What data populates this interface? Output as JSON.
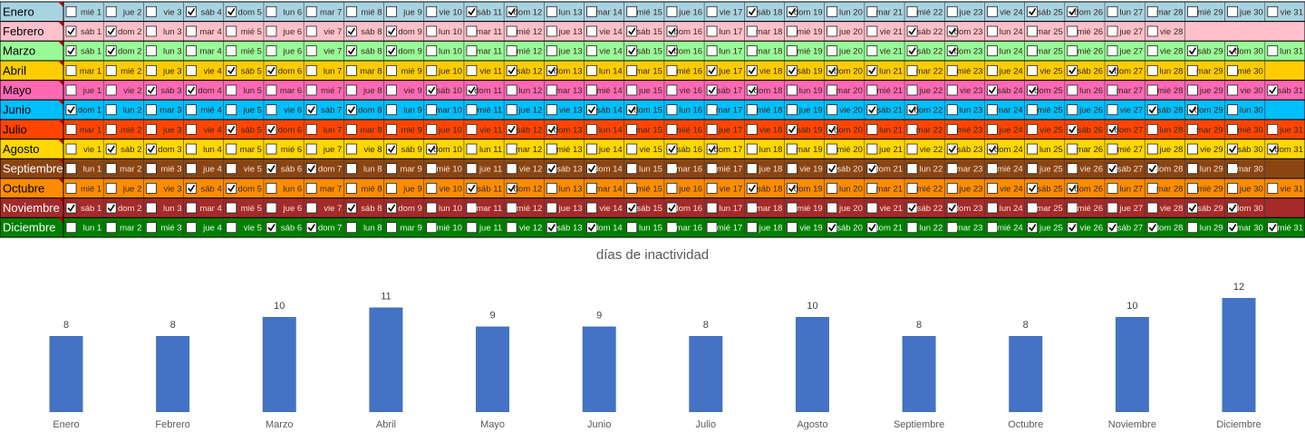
{
  "calendar": {
    "months": [
      {
        "name": "Enero",
        "color": "#a8d4e2",
        "text_color": "#000000",
        "day_text_color": "#3a2a20",
        "days": [
          "mié 1",
          "jue 2",
          "vie 3",
          "sáb 4",
          "dom 5",
          "lun 6",
          "mar 7",
          "mié 8",
          "jue 9",
          "vie 10",
          "sáb 11",
          "dom 12",
          "lun 13",
          "mar 14",
          "mié 15",
          "jue 16",
          "vie 17",
          "sáb 18",
          "dom 19",
          "lun 20",
          "mar 21",
          "mié 22",
          "jue 23",
          "vie 24",
          "sáb 25",
          "dom 26",
          "lun 27",
          "mar 28",
          "mié 29",
          "jue 30",
          "vie 31"
        ],
        "checked": [
          false,
          false,
          false,
          true,
          true,
          false,
          false,
          false,
          false,
          false,
          true,
          true,
          false,
          false,
          false,
          false,
          false,
          true,
          true,
          false,
          false,
          false,
          false,
          false,
          true,
          true,
          false,
          false,
          false,
          false,
          false
        ]
      },
      {
        "name": "Febrero",
        "color": "#ffc0cb",
        "text_color": "#000000",
        "day_text_color": "#3a2a20",
        "days": [
          "sáb 1",
          "dom 2",
          "lun 3",
          "mar 4",
          "mié 5",
          "jue 6",
          "vie 7",
          "sáb 8",
          "dom 9",
          "lun 10",
          "mar 11",
          "mié 12",
          "jue 13",
          "vie 14",
          "sáb 15",
          "dom 16",
          "lun 17",
          "mar 18",
          "mié 19",
          "jue 20",
          "vie 21",
          "sáb 22",
          "dom 23",
          "lun 24",
          "mar 25",
          "mié 26",
          "jue 27",
          "vie 28"
        ],
        "checked": [
          true,
          true,
          false,
          false,
          false,
          false,
          false,
          true,
          true,
          false,
          false,
          false,
          false,
          false,
          true,
          true,
          false,
          false,
          false,
          false,
          false,
          true,
          true,
          false,
          false,
          false,
          false,
          false
        ]
      },
      {
        "name": "Marzo",
        "color": "#98fb98",
        "text_color": "#000000",
        "day_text_color": "#3a2a20",
        "days": [
          "sáb 1",
          "dom 2",
          "lun 3",
          "mar 4",
          "mié 5",
          "jue 6",
          "vie 7",
          "sáb 8",
          "dom 9",
          "lun 10",
          "mar 11",
          "mié 12",
          "jue 13",
          "vie 14",
          "sáb 15",
          "dom 16",
          "lun 17",
          "mar 18",
          "mié 19",
          "jue 20",
          "vie 21",
          "sáb 22",
          "dom 23",
          "lun 24",
          "mar 25",
          "mié 26",
          "jue 27",
          "vie 28",
          "sáb 29",
          "dom 30",
          "lun 31"
        ],
        "checked": [
          true,
          true,
          false,
          false,
          false,
          false,
          false,
          true,
          true,
          false,
          false,
          false,
          false,
          false,
          true,
          true,
          false,
          false,
          false,
          false,
          false,
          true,
          true,
          false,
          false,
          false,
          false,
          false,
          true,
          true,
          false
        ]
      },
      {
        "name": "Abril",
        "color": "#ffcc00",
        "text_color": "#000000",
        "day_text_color": "#3a2a20",
        "days": [
          "mar 1",
          "mié 2",
          "jue 3",
          "vie 4",
          "sáb 5",
          "dom 6",
          "lun 7",
          "mar 8",
          "mié 9",
          "jue 10",
          "vie 11",
          "sáb 12",
          "dom 13",
          "lun 14",
          "mar 15",
          "mié 16",
          "jue 17",
          "vie 18",
          "sáb 19",
          "dom 20",
          "lun 21",
          "mar 22",
          "mié 23",
          "jue 24",
          "vie 25",
          "sáb 26",
          "dom 27",
          "lun 28",
          "mar 29",
          "mié 30"
        ],
        "checked": [
          false,
          false,
          false,
          false,
          true,
          true,
          false,
          false,
          false,
          false,
          false,
          true,
          true,
          false,
          false,
          false,
          true,
          true,
          true,
          true,
          true,
          false,
          false,
          false,
          false,
          true,
          true,
          false,
          false,
          false
        ]
      },
      {
        "name": "Mayo",
        "color": "#ff69b4",
        "text_color": "#000000",
        "day_text_color": "#3a2a20",
        "days": [
          "jue 1",
          "vie 2",
          "sáb 3",
          "dom 4",
          "lun 5",
          "mar 6",
          "mié 7",
          "jue 8",
          "vie 9",
          "sáb 10",
          "dom 11",
          "lun 12",
          "mar 13",
          "mié 14",
          "jue 15",
          "vie 16",
          "sáb 17",
          "dom 18",
          "lun 19",
          "mar 20",
          "mié 21",
          "jue 22",
          "vie 23",
          "sáb 24",
          "dom 25",
          "lun 26",
          "mar 27",
          "mié 28",
          "jue 29",
          "vie 30",
          "sáb 31"
        ],
        "checked": [
          false,
          false,
          true,
          true,
          false,
          false,
          false,
          false,
          false,
          true,
          true,
          false,
          false,
          false,
          false,
          false,
          true,
          true,
          false,
          false,
          false,
          false,
          false,
          true,
          true,
          false,
          false,
          false,
          false,
          false,
          true
        ]
      },
      {
        "name": "Junio",
        "color": "#00bfff",
        "text_color": "#000000",
        "day_text_color": "#3a2a20",
        "days": [
          "dom 1",
          "lun 2",
          "mar 3",
          "mié 4",
          "jue 5",
          "vie 6",
          "sáb 7",
          "dom 8",
          "lun 9",
          "mar 10",
          "mié 11",
          "jue 12",
          "vie 13",
          "sáb 14",
          "dom 15",
          "lun 16",
          "mar 17",
          "mié 18",
          "jue 19",
          "vie 20",
          "sáb 21",
          "dom 22",
          "lun 23",
          "mar 24",
          "mié 25",
          "jue 26",
          "vie 27",
          "sáb 28",
          "dom 29",
          "lun 30"
        ],
        "checked": [
          true,
          false,
          false,
          false,
          false,
          false,
          true,
          true,
          false,
          false,
          false,
          false,
          false,
          true,
          true,
          false,
          false,
          false,
          false,
          false,
          true,
          true,
          false,
          false,
          false,
          false,
          false,
          true,
          true,
          false
        ]
      },
      {
        "name": "Julio",
        "color": "#ff4500",
        "text_color": "#000000",
        "day_text_color": "#3a2a20",
        "days": [
          "mar 1",
          "mié 2",
          "jue 3",
          "vie 4",
          "sáb 5",
          "dom 6",
          "lun 7",
          "mar 8",
          "mié 9",
          "jue 10",
          "vie 11",
          "sáb 12",
          "dom 13",
          "lun 14",
          "mar 15",
          "mié 16",
          "jue 17",
          "vie 18",
          "sáb 19",
          "dom 20",
          "lun 21",
          "mar 22",
          "mié 23",
          "jue 24",
          "vie 25",
          "sáb 26",
          "dom 27",
          "lun 28",
          "mar 29",
          "mié 30",
          "jue 31"
        ],
        "checked": [
          false,
          false,
          false,
          false,
          true,
          true,
          false,
          false,
          false,
          false,
          false,
          true,
          true,
          false,
          false,
          false,
          false,
          false,
          true,
          true,
          false,
          false,
          false,
          false,
          false,
          true,
          true,
          false,
          false,
          false,
          false
        ]
      },
      {
        "name": "Agosto",
        "color": "#ffd700",
        "text_color": "#000000",
        "day_text_color": "#3a2a20",
        "days": [
          "vie 1",
          "sáb 2",
          "dom 3",
          "lun 4",
          "mar 5",
          "mié 6",
          "jue 7",
          "vie 8",
          "sáb 9",
          "dom 10",
          "lun 11",
          "mar 12",
          "mié 13",
          "jue 14",
          "vie 15",
          "sáb 16",
          "dom 17",
          "lun 18",
          "mar 19",
          "mié 20",
          "jue 21",
          "vie 22",
          "sáb 23",
          "dom 24",
          "lun 25",
          "mar 26",
          "mié 27",
          "jue 28",
          "vie 29",
          "sáb 30",
          "dom 31"
        ],
        "checked": [
          false,
          true,
          true,
          false,
          false,
          false,
          false,
          false,
          true,
          true,
          false,
          false,
          false,
          false,
          false,
          true,
          true,
          false,
          false,
          false,
          false,
          false,
          true,
          true,
          false,
          false,
          false,
          false,
          false,
          true,
          true
        ]
      },
      {
        "name": "Septiembre",
        "color": "#8b4513",
        "text_color": "#ffffff",
        "day_text_color": "#f0e0d0",
        "days": [
          "lun 1",
          "mar 2",
          "mié 3",
          "jue 4",
          "vie 5",
          "sáb 6",
          "dom 7",
          "lun 8",
          "mar 9",
          "mié 10",
          "jue 11",
          "vie 12",
          "sáb 13",
          "dom 14",
          "lun 15",
          "mar 16",
          "mié 17",
          "jue 18",
          "vie 19",
          "sáb 20",
          "dom 21",
          "lun 22",
          "mar 23",
          "mié 24",
          "jue 25",
          "vie 26",
          "sáb 27",
          "dom 28",
          "lun 29",
          "mar 30"
        ],
        "checked": [
          false,
          false,
          false,
          false,
          false,
          true,
          true,
          false,
          false,
          false,
          false,
          false,
          true,
          true,
          false,
          false,
          false,
          false,
          false,
          true,
          true,
          false,
          false,
          false,
          false,
          false,
          true,
          true,
          false,
          false
        ]
      },
      {
        "name": "Octubre",
        "color": "#ff8c00",
        "text_color": "#000000",
        "day_text_color": "#3a2a20",
        "days": [
          "mié 1",
          "jue 2",
          "vie 3",
          "sáb 4",
          "dom 5",
          "lun 6",
          "mar 7",
          "mié 8",
          "jue 9",
          "vie 10",
          "sáb 11",
          "dom 12",
          "lun 13",
          "mar 14",
          "mié 15",
          "jue 16",
          "vie 17",
          "sáb 18",
          "dom 19",
          "lun 20",
          "mar 21",
          "mié 22",
          "jue 23",
          "vie 24",
          "sáb 25",
          "dom 26",
          "lun 27",
          "mar 28",
          "mié 29",
          "jue 30",
          "vie 31"
        ],
        "checked": [
          false,
          false,
          false,
          true,
          true,
          false,
          false,
          false,
          false,
          false,
          true,
          true,
          false,
          false,
          false,
          false,
          false,
          true,
          true,
          false,
          false,
          false,
          false,
          false,
          true,
          true,
          false,
          false,
          false,
          false,
          false
        ]
      },
      {
        "name": "Noviembre",
        "color": "#a52a2a",
        "text_color": "#ffffff",
        "day_text_color": "#f0e0d0",
        "days": [
          "sáb 1",
          "dom 2",
          "lun 3",
          "mar 4",
          "mié 5",
          "jue 6",
          "vie 7",
          "sáb 8",
          "dom 9",
          "lun 10",
          "mar 11",
          "mié 12",
          "jue 13",
          "vie 14",
          "sáb 15",
          "dom 16",
          "lun 17",
          "mar 18",
          "mié 19",
          "jue 20",
          "vie 21",
          "sáb 22",
          "dom 23",
          "lun 24",
          "mar 25",
          "mié 26",
          "jue 27",
          "vie 28",
          "sáb 29",
          "dom 30"
        ],
        "checked": [
          true,
          true,
          false,
          false,
          false,
          false,
          false,
          true,
          true,
          false,
          false,
          false,
          false,
          false,
          true,
          true,
          false,
          false,
          false,
          false,
          false,
          true,
          true,
          false,
          false,
          false,
          false,
          false,
          true,
          true
        ]
      },
      {
        "name": "Diciembre",
        "color": "#008000",
        "text_color": "#ffffff",
        "day_text_color": "#e8f5e8",
        "days": [
          "lun 1",
          "mar 2",
          "mié 3",
          "jue 4",
          "vie 5",
          "sáb 6",
          "dom 7",
          "lun 8",
          "mar 9",
          "mié 10",
          "jue 11",
          "vie 12",
          "sáb 13",
          "dom 14",
          "lun 15",
          "mar 16",
          "mié 17",
          "jue 18",
          "vie 19",
          "sáb 20",
          "dom 21",
          "lun 22",
          "mar 23",
          "mié 24",
          "jue 25",
          "vie 26",
          "sáb 27",
          "dom 28",
          "lun 29",
          "mar 30",
          "mié 31"
        ],
        "checked": [
          false,
          false,
          false,
          false,
          false,
          true,
          true,
          false,
          false,
          false,
          false,
          false,
          true,
          true,
          false,
          false,
          false,
          false,
          false,
          true,
          true,
          false,
          false,
          false,
          true,
          true,
          true,
          true,
          false,
          true,
          true
        ]
      }
    ]
  },
  "chart_data": {
    "type": "bar",
    "title": "días de inactividad",
    "categories": [
      "Enero",
      "Febrero",
      "Marzo",
      "Abril",
      "Mayo",
      "Junio",
      "Julio",
      "Agosto",
      "Septiembre",
      "Octubre",
      "Noviembre",
      "Diciembre"
    ],
    "values": [
      8,
      8,
      10,
      11,
      9,
      9,
      8,
      10,
      8,
      8,
      10,
      12
    ],
    "color": "#4472c4",
    "data_labels": true
  }
}
